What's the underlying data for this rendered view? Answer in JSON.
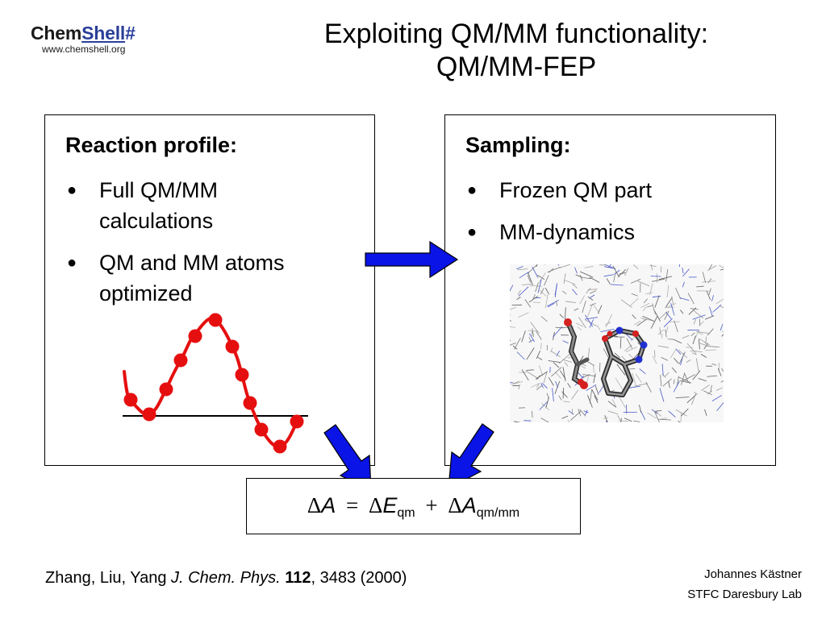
{
  "logo": {
    "chem": "Chem",
    "shell": "Shell",
    "hash": "#",
    "url": "www.chemshell.org"
  },
  "title": {
    "line1": "Exploiting QM/MM functionality:",
    "line2": "QM/MM-FEP"
  },
  "left_panel": {
    "heading": "Reaction profile:",
    "bullets": [
      {
        "line1": "Full QM/MM",
        "line2": "calculations"
      },
      {
        "line1": "QM and MM atoms",
        "line2": "optimized"
      }
    ]
  },
  "right_panel": {
    "heading": "Sampling:",
    "bullets": [
      "Frozen QM part",
      "MM-dynamics"
    ]
  },
  "equation": {
    "delta": "Δ",
    "A": "A",
    "equals": "=",
    "E": "E",
    "sub_qm": "qm",
    "plus": "+",
    "sub_qmmm": "qm/mm"
  },
  "citation": {
    "authors": "Zhang, Liu, Yang ",
    "journal": "J. Chem. Phys.",
    "volume": "112",
    "rest": ", 3483 (2000)"
  },
  "author": {
    "name": "Johannes Kästner",
    "affiliation": "STFC Daresbury Lab"
  },
  "colors": {
    "arrow": "#0a14e6",
    "profile": "#e60f0f",
    "logo_blue": "#2a3f9a"
  }
}
